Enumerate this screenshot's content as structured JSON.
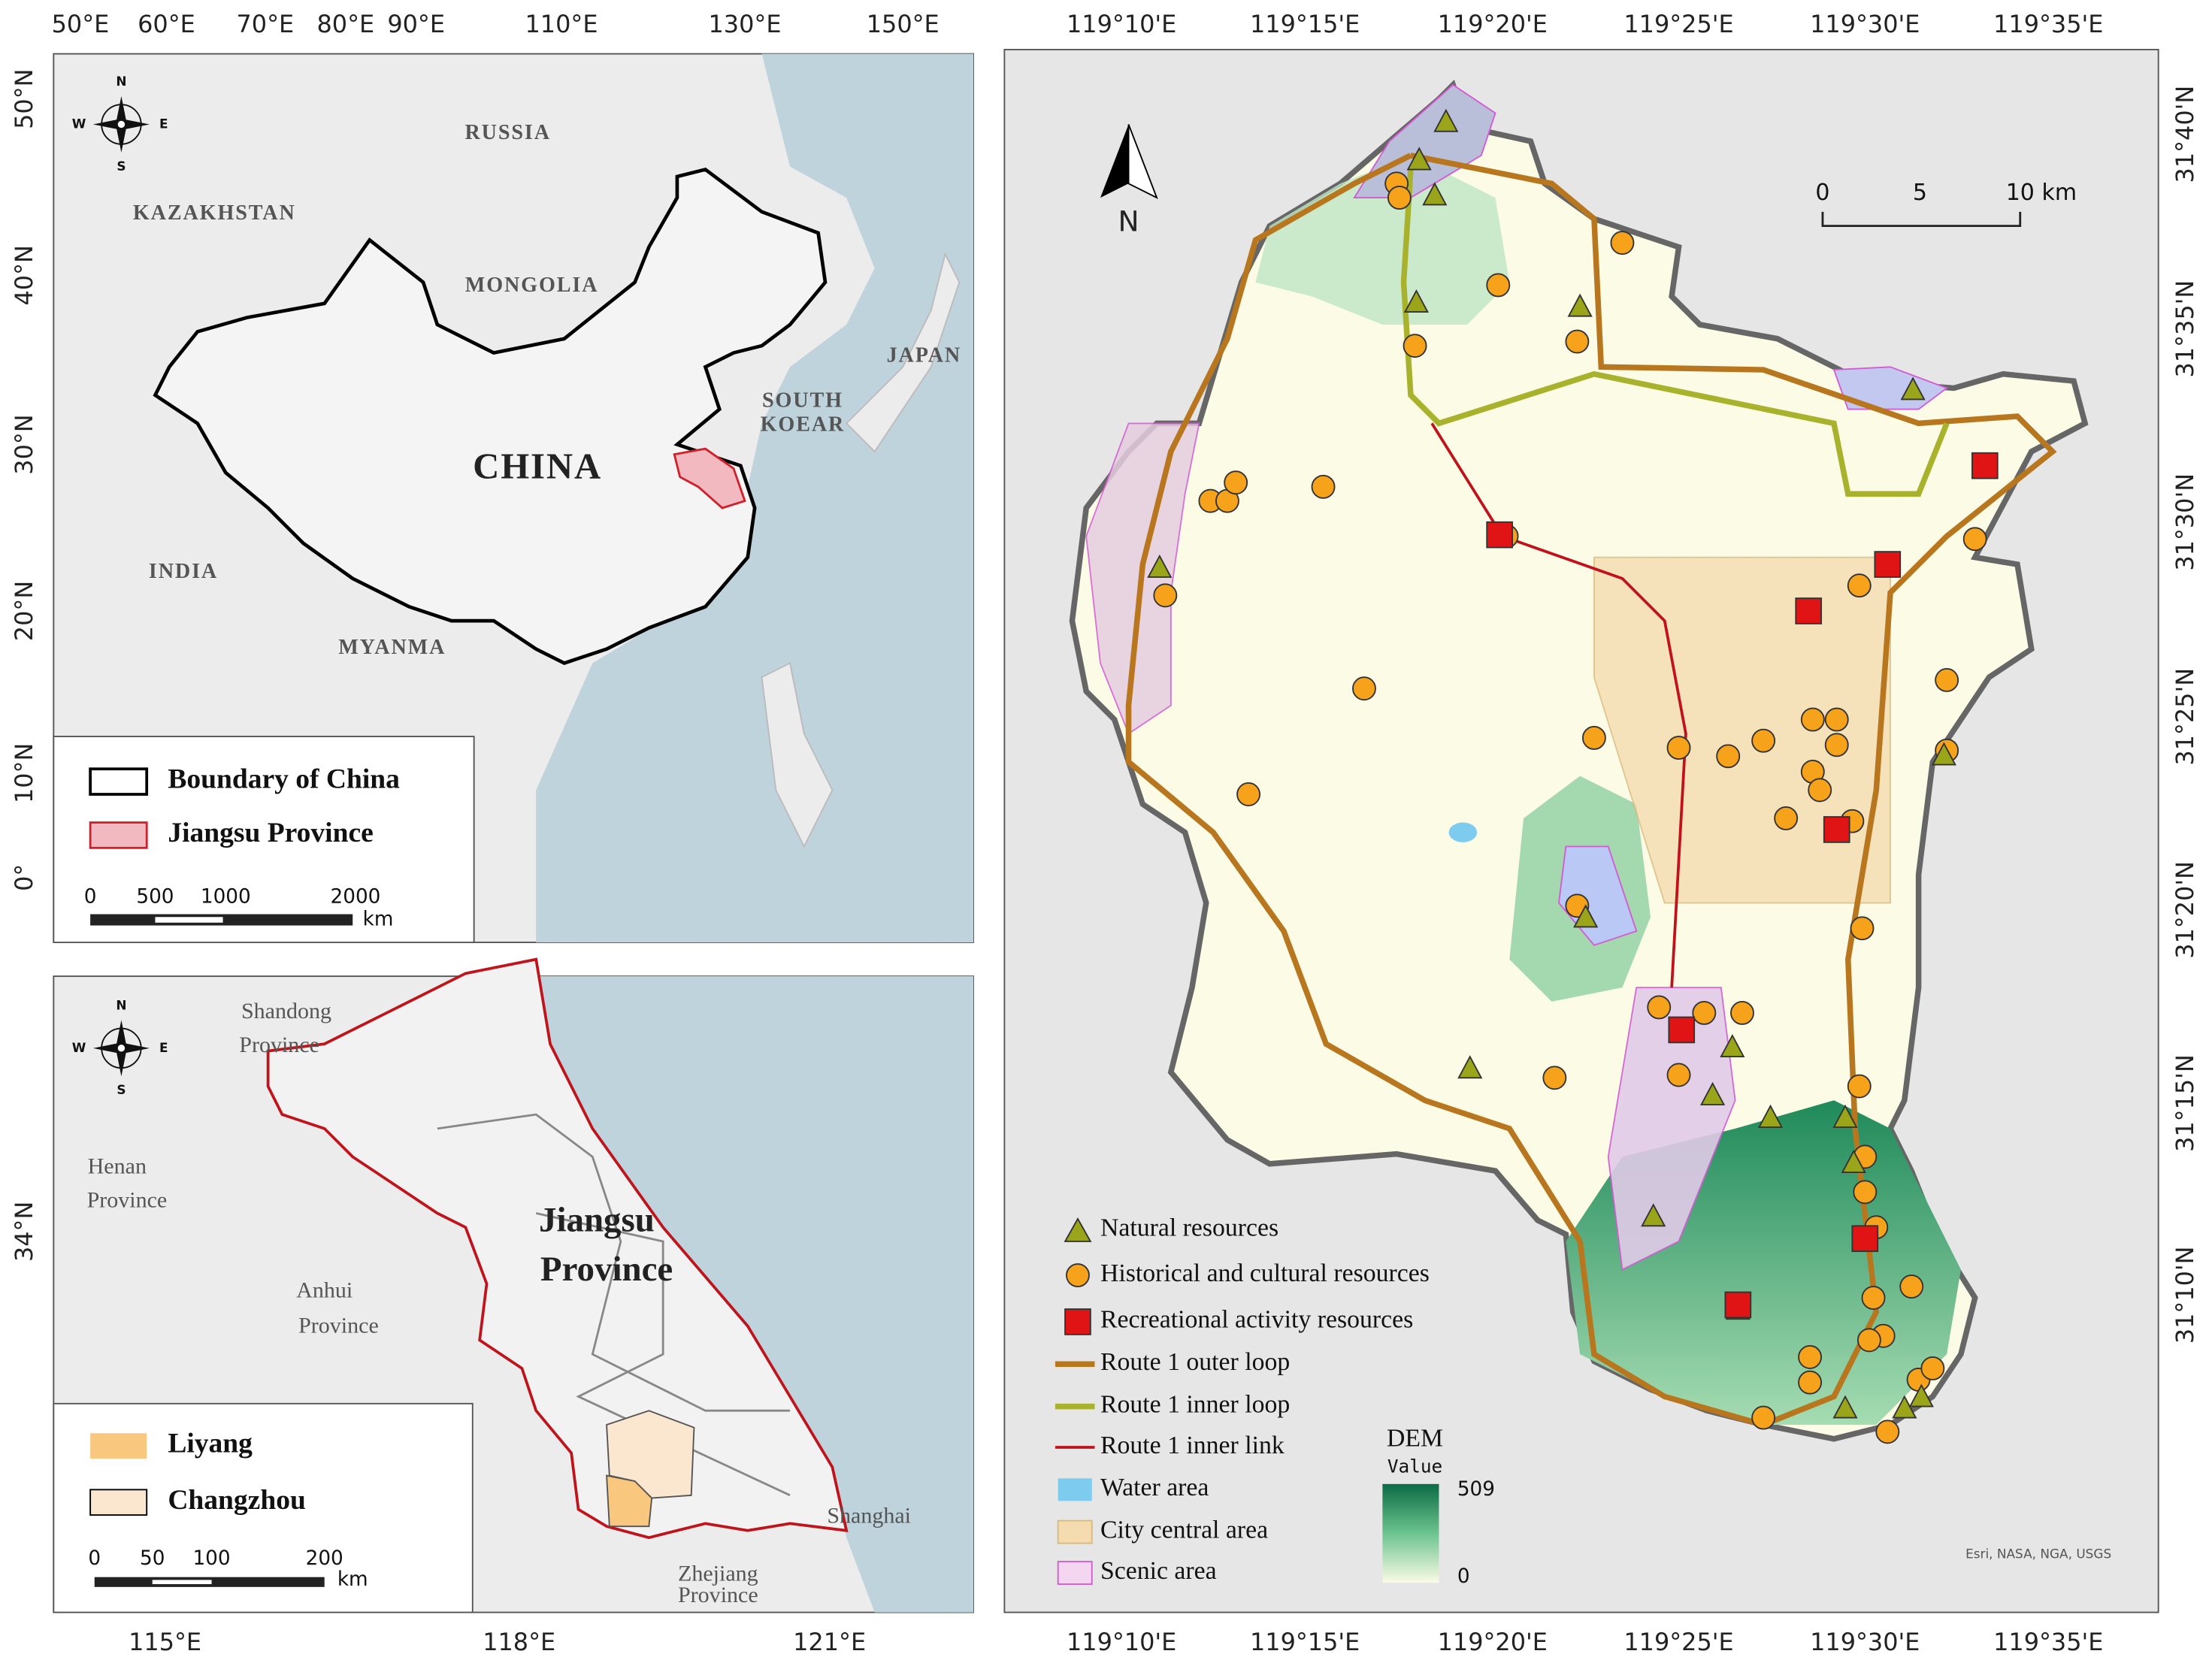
{
  "overview_map": {
    "longitude_labels": [
      "50°E",
      "60°E",
      "70°E",
      "80°E",
      "90°E",
      "110°E",
      "130°E",
      "150°E"
    ],
    "latitude_labels": [
      "50°N",
      "40°N",
      "30°N",
      "20°N",
      "10°N",
      "0°"
    ],
    "place_labels": [
      "RUSSIA",
      "KAZAKHSTAN",
      "MONGOLIA",
      "JAPAN",
      "SOUTH",
      "KOEAR",
      "CHINA",
      "INDIA",
      "MYANMA"
    ],
    "compass": [
      "N",
      "S",
      "W",
      "E"
    ],
    "legend": [
      "Boundary of China",
      "Jiangsu Province"
    ],
    "scale_labels": [
      "0",
      "500",
      "1000",
      "2000"
    ],
    "scale_unit": "km"
  },
  "province_map": {
    "longitude_labels": [
      "115°E",
      "118°E",
      "121°E"
    ],
    "latitude_labels": [
      "34°N"
    ],
    "place_labels": [
      "Shandong",
      "Province",
      "Henan",
      "Province",
      "Anhui",
      "Province",
      "Jiangsu",
      "Province",
      "Shanghai",
      "Zhejiang",
      "Province"
    ],
    "compass": [
      "N",
      "S",
      "W",
      "E"
    ],
    "legend": [
      "Liyang",
      "Changzhou"
    ],
    "scale_labels": [
      "0",
      "50",
      "100",
      "200"
    ],
    "scale_unit": "km"
  },
  "study_area_map": {
    "longitude_labels": [
      "119°10'E",
      "119°15'E",
      "119°20'E",
      "119°25'E",
      "119°30'E",
      "119°35'E"
    ],
    "latitude_labels": [
      "31°40'N",
      "31°35'N",
      "31°30'N",
      "31°25'N",
      "31°20'N",
      "31°15'N",
      "31°10'N"
    ],
    "north": "N",
    "scale_labels": [
      "0",
      "5",
      "10 km"
    ],
    "legend": [
      "Natural resources",
      "Historical and cultural resources",
      "Recreational activity resources",
      "Route 1 outer loop",
      "Route 1 inner loop",
      "Route 1 inner link",
      "Water area",
      "City central area",
      "Scenic area"
    ],
    "dem_legend": {
      "title": "DEM",
      "subtitle": "Value",
      "max": "509",
      "min": "0"
    },
    "attribution": "Esri, NASA, NGA, USGS"
  }
}
